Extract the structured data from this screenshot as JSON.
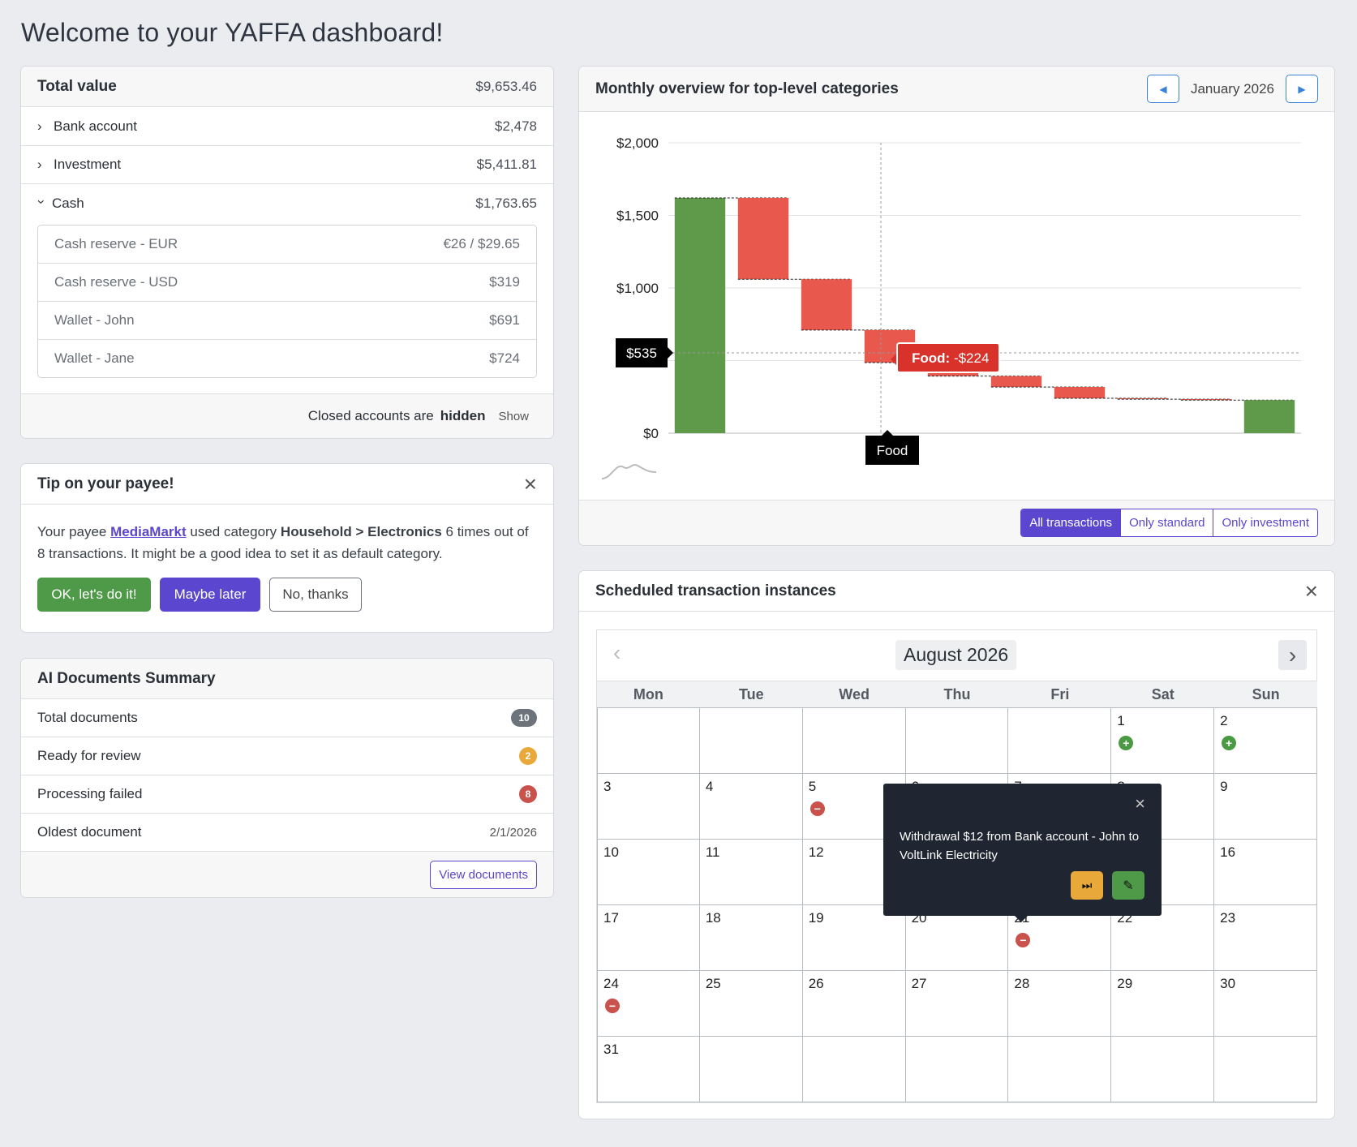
{
  "page_title": "Welcome to your YAFFA dashboard!",
  "totals": {
    "title": "Total value",
    "total": "$9,653.46",
    "groups": [
      {
        "label": "Bank account",
        "amount": "$2,478"
      },
      {
        "label": "Investment",
        "amount": "$5,411.81"
      },
      {
        "label": "Cash",
        "amount": "$1,763.65"
      }
    ],
    "cash_accounts": [
      {
        "label": "Cash reserve - EUR",
        "amount": "€26 / $29.65"
      },
      {
        "label": "Cash reserve - USD",
        "amount": "$319"
      },
      {
        "label": "Wallet - John",
        "amount": "$691"
      },
      {
        "label": "Wallet - Jane",
        "amount": "$724"
      }
    ],
    "closed_prefix": "Closed accounts are",
    "closed_state": "hidden",
    "show_link": "Show"
  },
  "tip": {
    "title": "Tip on your payee!",
    "t1": "Your payee",
    "payee": "MediaMarkt",
    "t2": "used category",
    "category": "Household > Electronics",
    "t3": "6 times out of 8 transactions. It might be a good idea to set it as default category.",
    "ok": "OK, let's do it!",
    "later": "Maybe later",
    "no": "No, thanks"
  },
  "ai": {
    "title": "AI Documents Summary",
    "rows": [
      {
        "label": "Total documents",
        "value": "10",
        "color": "#6c737b"
      },
      {
        "label": "Ready for review",
        "value": "2",
        "color": "#e9a93a"
      },
      {
        "label": "Processing failed",
        "value": "8",
        "color": "#c9524c"
      }
    ],
    "oldest_label": "Oldest document",
    "oldest_value": "2/1/2026",
    "view_button": "View documents"
  },
  "monthly": {
    "title": "Monthly overview for top-level categories",
    "month": "January 2026",
    "filters": [
      "All transactions",
      "Only standard",
      "Only investment"
    ],
    "cursor_value": "$535",
    "cursor_category": "Food",
    "tooltip_category": "Food",
    "tooltip_value": "-$224"
  },
  "chart_data": {
    "type": "bar",
    "subtype": "waterfall",
    "y_ticks": [
      "$0",
      "$500",
      "$1,000",
      "$1,500",
      "$2,000"
    ],
    "ylim": [
      0,
      2000
    ],
    "grid": true,
    "bars": [
      {
        "kind": "total",
        "start": 0,
        "end": 1620
      },
      {
        "kind": "change",
        "start": 1620,
        "end": 1060
      },
      {
        "kind": "change",
        "start": 1060,
        "end": 710
      },
      {
        "kind": "change",
        "start": 710,
        "end": 486,
        "category": "Food",
        "value": -224
      },
      {
        "kind": "change",
        "start": 486,
        "end": 393
      },
      {
        "kind": "change",
        "start": 393,
        "end": 318
      },
      {
        "kind": "change",
        "start": 318,
        "end": 240
      },
      {
        "kind": "change",
        "start": 240,
        "end": 234
      },
      {
        "kind": "change",
        "start": 234,
        "end": 228
      },
      {
        "kind": "total",
        "start": 0,
        "end": 228
      }
    ],
    "colors": {
      "total": "#5e9a4a",
      "change": "#e8584d"
    }
  },
  "calendar": {
    "title": "Scheduled transaction instances",
    "month": "August 2026",
    "weekdays": [
      "Mon",
      "Tue",
      "Wed",
      "Thu",
      "Fri",
      "Sat",
      "Sun"
    ],
    "popover": {
      "text": "Withdrawal $12 from Bank account - John to VoltLink Electricity"
    }
  }
}
